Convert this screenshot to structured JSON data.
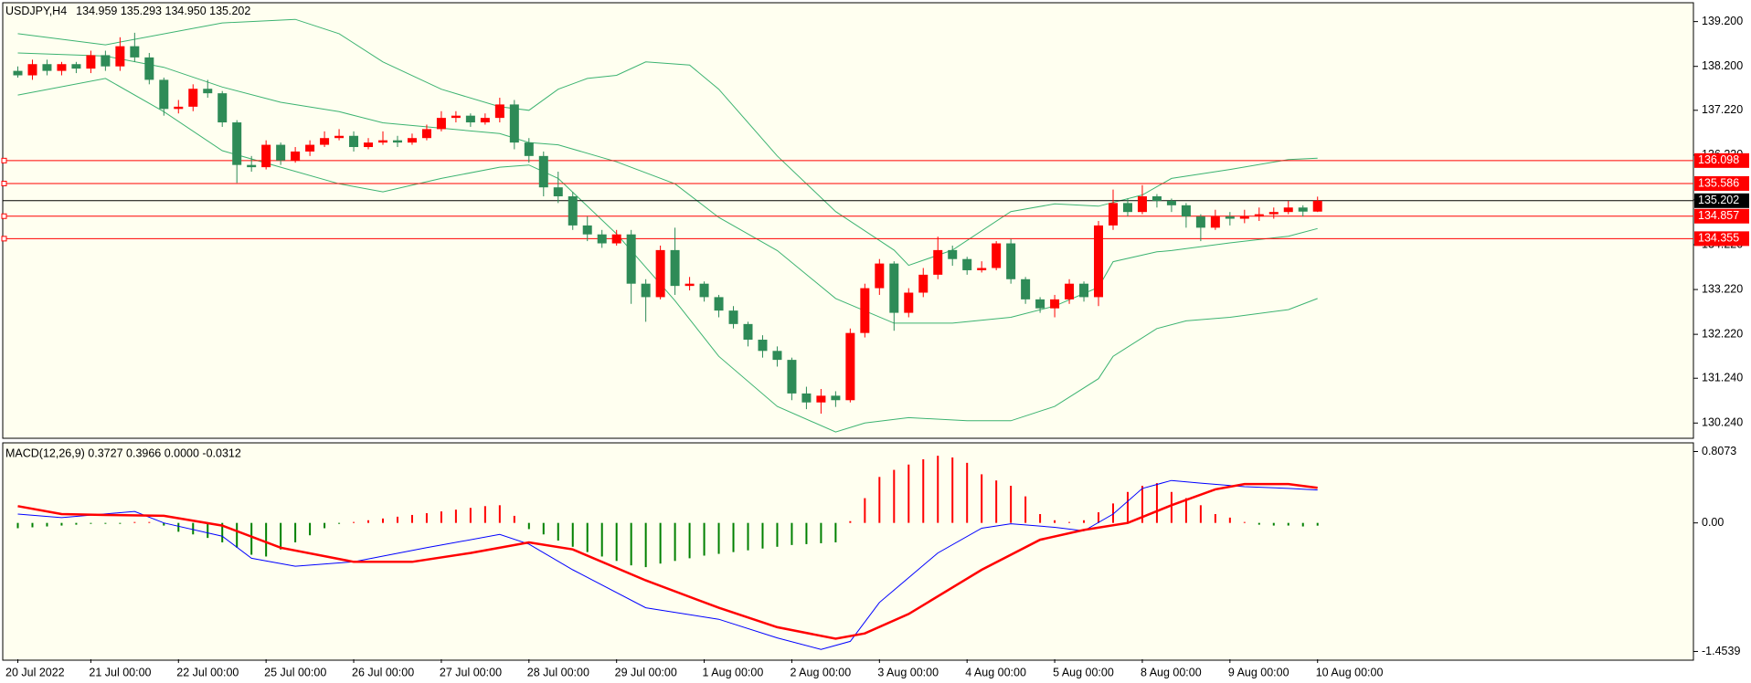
{
  "chart_data": {
    "type": "candlestick",
    "title": "USDJPY,H4",
    "info": "134.959 135.293 134.950 135.202",
    "categories": [
      "20 Jul 2022",
      null,
      null,
      null,
      null,
      "21 Jul 00:00",
      null,
      null,
      null,
      null,
      null,
      "22 Jul 00:00",
      null,
      null,
      null,
      null,
      null,
      "25 Jul 00:00",
      null,
      null,
      null,
      null,
      null,
      "26 Jul 00:00",
      null,
      null,
      null,
      null,
      null,
      "27 Jul 00:00",
      null,
      null,
      null,
      null,
      null,
      "28 Jul 00:00",
      null,
      null,
      null,
      null,
      null,
      "29 Jul 00:00",
      null,
      null,
      null,
      null,
      null,
      "1 Aug 00:00",
      null,
      null,
      null,
      null,
      null,
      "2 Aug 00:00",
      null,
      null,
      null,
      null,
      null,
      "3 Aug 00:00",
      null,
      null,
      null,
      null,
      null,
      "4 Aug 00:00",
      null,
      null,
      null,
      null,
      null,
      "5 Aug 00:00",
      null,
      null,
      null,
      null,
      null,
      "8 Aug 00:00",
      null,
      null,
      null,
      null,
      null,
      "9 Aug 00:00",
      null,
      null,
      null,
      null,
      null,
      "10 Aug 00:00"
    ],
    "open": [
      138.1,
      138.0,
      138.25,
      138.1,
      138.25,
      138.15,
      138.45,
      138.2,
      138.65,
      138.4,
      137.9,
      137.25,
      137.3,
      137.7,
      137.6,
      136.95,
      136.0,
      135.95,
      136.45,
      136.1,
      136.3,
      136.45,
      136.6,
      136.65,
      136.4,
      136.5,
      136.55,
      136.5,
      136.6,
      136.8,
      137.05,
      137.1,
      136.95,
      137.05,
      137.35,
      136.5,
      136.2,
      135.5,
      135.3,
      134.65,
      134.45,
      134.25,
      134.45,
      133.35,
      133.05,
      134.1,
      133.3,
      133.35,
      133.05,
      132.75,
      132.45,
      132.1,
      131.85,
      131.65,
      130.9,
      130.7,
      130.85,
      130.75,
      132.25,
      133.25,
      133.8,
      132.7,
      133.15,
      133.55,
      134.1,
      133.9,
      133.65,
      133.7,
      134.25,
      133.45,
      133.0,
      132.8,
      133.0,
      133.35,
      133.05,
      134.65,
      135.15,
      134.95,
      135.3,
      135.2,
      135.1,
      134.85,
      134.6,
      134.85,
      134.8,
      134.85,
      134.9,
      134.95,
      135.05,
      134.959
    ],
    "high": [
      138.2,
      138.35,
      138.35,
      138.3,
      138.3,
      138.55,
      138.55,
      138.85,
      138.95,
      138.5,
      137.95,
      137.45,
      137.8,
      137.9,
      137.65,
      137.0,
      136.2,
      136.55,
      136.5,
      136.4,
      136.55,
      136.75,
      136.8,
      136.75,
      136.6,
      136.75,
      136.65,
      136.7,
      136.9,
      137.2,
      137.2,
      137.15,
      137.15,
      137.5,
      137.45,
      136.6,
      136.3,
      135.85,
      135.4,
      134.85,
      134.55,
      134.55,
      134.55,
      133.45,
      134.2,
      134.6,
      133.5,
      133.4,
      133.1,
      132.85,
      132.5,
      132.2,
      131.95,
      131.7,
      131.05,
      131.0,
      130.95,
      132.35,
      133.35,
      133.9,
      133.85,
      133.25,
      133.7,
      134.4,
      134.2,
      133.95,
      133.85,
      134.3,
      134.35,
      133.5,
      133.05,
      133.1,
      133.45,
      133.4,
      134.75,
      135.45,
      135.25,
      135.55,
      135.35,
      135.25,
      135.15,
      134.9,
      135.0,
      134.95,
      135.0,
      135.05,
      135.05,
      135.2,
      135.1,
      135.293
    ],
    "low": [
      137.95,
      137.9,
      138.0,
      138.0,
      138.05,
      138.05,
      138.1,
      138.1,
      138.3,
      137.8,
      137.1,
      137.15,
      137.2,
      137.5,
      136.85,
      135.6,
      135.85,
      135.9,
      136.0,
      136.05,
      136.2,
      136.4,
      136.55,
      136.3,
      136.35,
      136.45,
      136.4,
      136.45,
      136.55,
      136.75,
      136.95,
      136.85,
      136.9,
      136.95,
      136.35,
      136.05,
      135.3,
      135.15,
      134.55,
      134.3,
      134.15,
      134.2,
      132.9,
      132.5,
      133.0,
      133.1,
      133.2,
      132.95,
      132.6,
      132.35,
      131.95,
      131.7,
      131.5,
      130.75,
      130.55,
      130.45,
      130.6,
      130.7,
      132.15,
      133.1,
      132.3,
      132.6,
      133.05,
      133.45,
      133.75,
      133.55,
      133.6,
      133.65,
      133.35,
      132.9,
      132.7,
      132.6,
      132.9,
      132.95,
      132.85,
      134.55,
      134.85,
      134.9,
      135.05,
      134.95,
      134.6,
      134.3,
      134.55,
      134.65,
      134.7,
      134.75,
      134.8,
      134.9,
      134.85,
      134.95
    ],
    "close": [
      138.0,
      138.25,
      138.1,
      138.25,
      138.15,
      138.45,
      138.2,
      138.65,
      138.4,
      137.9,
      137.25,
      137.3,
      137.7,
      137.6,
      136.95,
      136.0,
      135.95,
      136.45,
      136.1,
      136.3,
      136.45,
      136.6,
      136.65,
      136.4,
      136.5,
      136.55,
      136.5,
      136.6,
      136.8,
      137.05,
      137.1,
      136.95,
      137.05,
      137.35,
      136.5,
      136.2,
      135.5,
      135.3,
      134.65,
      134.45,
      134.25,
      134.45,
      133.35,
      133.05,
      134.1,
      133.3,
      133.35,
      133.05,
      132.75,
      132.45,
      132.1,
      131.85,
      131.65,
      130.9,
      130.7,
      130.85,
      130.75,
      132.25,
      133.25,
      133.8,
      132.7,
      133.15,
      133.55,
      134.1,
      133.9,
      133.65,
      133.7,
      134.25,
      133.45,
      133.0,
      132.8,
      133.0,
      133.35,
      133.05,
      134.65,
      135.15,
      134.95,
      135.3,
      135.2,
      135.1,
      134.85,
      134.6,
      134.85,
      134.8,
      134.85,
      134.9,
      134.95,
      135.05,
      134.959,
      135.202
    ],
    "up_color": "#ff0000",
    "down_color": "#2e8b57",
    "bands": [
      {
        "color": "#3cb371",
        "x": [
          0,
          6,
          14,
          19,
          22,
          25,
          29,
          33,
          35,
          37,
          39,
          41,
          43,
          46,
          48,
          52,
          56,
          60,
          61,
          64,
          68,
          71,
          74,
          77,
          79,
          83,
          87,
          89
        ],
        "values": [
          138.93,
          138.68,
          139.17,
          139.25,
          138.93,
          138.3,
          137.69,
          137.3,
          137.22,
          137.69,
          137.93,
          138.0,
          138.3,
          138.23,
          137.69,
          136.2,
          134.96,
          134.1,
          133.76,
          134.1,
          134.96,
          135.13,
          135.08,
          135.33,
          135.7,
          135.9,
          136.12,
          136.15
        ]
      },
      {
        "color": "#3cb371",
        "x": [
          0,
          6,
          10,
          14,
          18,
          22,
          25,
          29,
          33,
          35,
          37,
          41,
          45,
          48,
          52,
          56,
          60,
          64,
          68,
          71,
          74,
          75,
          78,
          79,
          83,
          87,
          89
        ],
        "values": [
          138.5,
          138.43,
          138.18,
          137.74,
          137.4,
          137.19,
          136.94,
          136.82,
          136.7,
          136.5,
          136.45,
          136.07,
          135.58,
          134.83,
          134.09,
          133.02,
          132.47,
          132.47,
          132.6,
          132.85,
          133.27,
          133.84,
          134.06,
          134.09,
          134.26,
          134.41,
          134.58
        ]
      },
      {
        "color": "#3cb371",
        "x": [
          0,
          6,
          10,
          14,
          18,
          22,
          25,
          29,
          33,
          35,
          37,
          41,
          45,
          48,
          52,
          56,
          58,
          61,
          65,
          68,
          71,
          74,
          75,
          78,
          80,
          83,
          87,
          89
        ],
        "values": [
          137.56,
          137.93,
          137.19,
          136.32,
          135.95,
          135.58,
          135.4,
          135.7,
          135.95,
          136.0,
          135.7,
          134.46,
          132.97,
          131.73,
          130.61,
          130.04,
          130.24,
          130.36,
          130.29,
          130.29,
          130.61,
          131.23,
          131.73,
          132.35,
          132.52,
          132.6,
          132.77,
          133.02
        ]
      }
    ],
    "ylim": [
      129.92,
      139.6
    ],
    "yticks": [
      {
        "value": 139.2,
        "label": "139.200"
      },
      {
        "value": 138.2,
        "label": "138.200"
      },
      {
        "value": 137.22,
        "label": "137.220"
      },
      {
        "value": 136.22,
        "label": "136.220"
      },
      {
        "value": 135.22,
        "label": "135.220"
      },
      {
        "value": 134.22,
        "label": "134.220"
      },
      {
        "value": 133.22,
        "label": "133.220"
      },
      {
        "value": 132.22,
        "label": "132.220"
      },
      {
        "value": 131.24,
        "label": "131.240"
      },
      {
        "value": 130.24,
        "label": "130.240"
      }
    ],
    "levels": [
      136.098,
      135.586,
      134.857,
      134.355
    ],
    "level_color": "#ff0000",
    "current_price": 135.202,
    "current_color": "#000000",
    "macd": {
      "title": "MACD(12,26,9) 0.3727 0.3966 0.0000 -0.0312",
      "histogram": [
        -0.06,
        -0.05,
        -0.04,
        -0.03,
        -0.02,
        -0.01,
        -0.01,
        -0.01,
        0.01,
        0.01,
        -0.03,
        -0.1,
        -0.13,
        -0.17,
        -0.22,
        -0.28,
        -0.36,
        -0.38,
        -0.3,
        -0.22,
        -0.14,
        -0.06,
        -0.01,
        0.01,
        0.03,
        0.05,
        0.07,
        0.09,
        0.11,
        0.13,
        0.15,
        0.17,
        0.19,
        0.2,
        0.08,
        -0.07,
        -0.13,
        -0.2,
        -0.27,
        -0.33,
        -0.38,
        -0.43,
        -0.48,
        -0.5,
        -0.46,
        -0.43,
        -0.4,
        -0.37,
        -0.35,
        -0.33,
        -0.31,
        -0.29,
        -0.27,
        -0.25,
        -0.24,
        -0.23,
        -0.22,
        0.02,
        0.28,
        0.52,
        0.6,
        0.66,
        0.72,
        0.76,
        0.74,
        0.68,
        0.55,
        0.48,
        0.42,
        0.3,
        0.1,
        0.03,
        0.01,
        0.03,
        0.12,
        0.22,
        0.35,
        0.42,
        0.45,
        0.35,
        0.28,
        0.2,
        0.1,
        0.06,
        0.01,
        -0.02,
        -0.03,
        -0.03,
        -0.04,
        -0.0312
      ],
      "hist_up_color": "#ff0000",
      "hist_down_color": "#008000",
      "lines": [
        {
          "color": "#0000ff",
          "width": 1,
          "x": [
            0,
            3,
            8,
            10,
            14,
            16,
            19,
            23,
            28,
            29,
            33,
            35,
            38,
            43,
            48,
            52,
            55,
            57,
            59,
            63,
            66,
            68,
            71,
            73,
            75,
            77,
            79,
            81,
            84,
            87,
            89
          ],
          "values": [
            0.1,
            0.06,
            0.13,
            0.0,
            -0.15,
            -0.4,
            -0.49,
            -0.44,
            -0.28,
            -0.25,
            -0.13,
            -0.24,
            -0.53,
            -0.96,
            -1.09,
            -1.3,
            -1.43,
            -1.34,
            -0.9,
            -0.34,
            -0.06,
            -0.01,
            -0.05,
            -0.09,
            0.1,
            0.39,
            0.48,
            0.45,
            0.41,
            0.39,
            0.3727
          ]
        },
        {
          "color": "#ff0000",
          "width": 2.5,
          "x": [
            0,
            3,
            6,
            10,
            14,
            18,
            23,
            27,
            31,
            35,
            38,
            43,
            48,
            52,
            56,
            58,
            61,
            66,
            70,
            73,
            76,
            79,
            82,
            84,
            87,
            89
          ],
          "values": [
            0.19,
            0.1,
            0.09,
            0.08,
            -0.03,
            -0.28,
            -0.44,
            -0.44,
            -0.34,
            -0.22,
            -0.3,
            -0.65,
            -0.96,
            -1.18,
            -1.31,
            -1.25,
            -1.03,
            -0.53,
            -0.19,
            -0.08,
            0.0,
            0.2,
            0.38,
            0.44,
            0.44,
            0.3966
          ]
        }
      ],
      "ylim": [
        -1.542,
        0.895
      ],
      "yticks": [
        0.8073,
        {
          "value": 0,
          "label": "0.00"
        },
        -1.4539
      ]
    }
  }
}
